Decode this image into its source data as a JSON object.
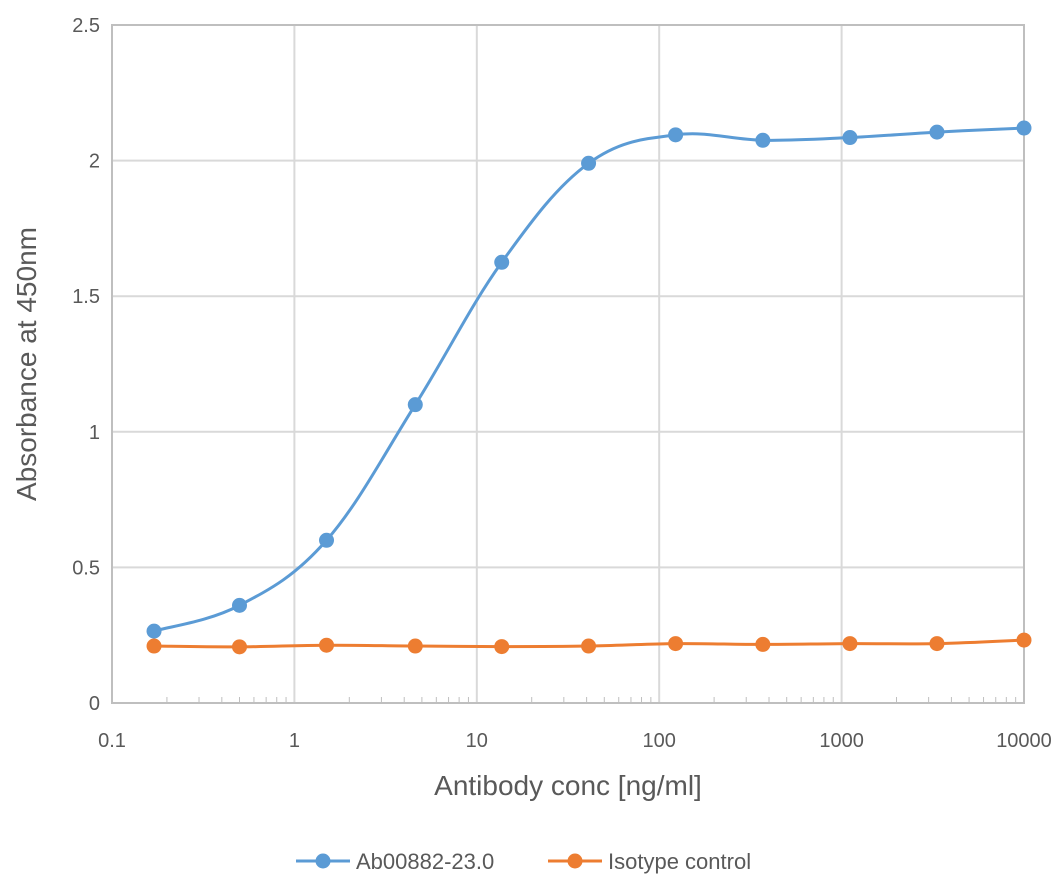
{
  "chart_data": {
    "type": "line",
    "title": "",
    "xlabel": "Antibody conc [ng/ml]",
    "ylabel": "Absorbance at 450nm",
    "x_scale": "log",
    "xlim": [
      0.1,
      10000
    ],
    "ylim": [
      0,
      2.5
    ],
    "x_ticks": [
      "0.1",
      "1",
      "10",
      "100",
      "1000",
      "10000"
    ],
    "y_ticks": [
      "0",
      "0.5",
      "1",
      "1.5",
      "2",
      "2.5"
    ],
    "grid": true,
    "legend_position": "bottom",
    "x": [
      0.17,
      0.5,
      1.5,
      4.6,
      13.7,
      41,
      123,
      370,
      1111,
      3333,
      10000
    ],
    "series": [
      {
        "name": "Ab00882-23.0",
        "color": "#5b9bd5",
        "values": [
          0.265,
          0.36,
          0.6,
          1.1,
          1.625,
          1.99,
          2.095,
          2.075,
          2.085,
          2.105,
          2.12
        ]
      },
      {
        "name": "Isotype control",
        "color": "#ed7d31",
        "values": [
          0.21,
          0.207,
          0.213,
          0.21,
          0.208,
          0.21,
          0.219,
          0.216,
          0.219,
          0.219,
          0.232
        ]
      }
    ]
  }
}
